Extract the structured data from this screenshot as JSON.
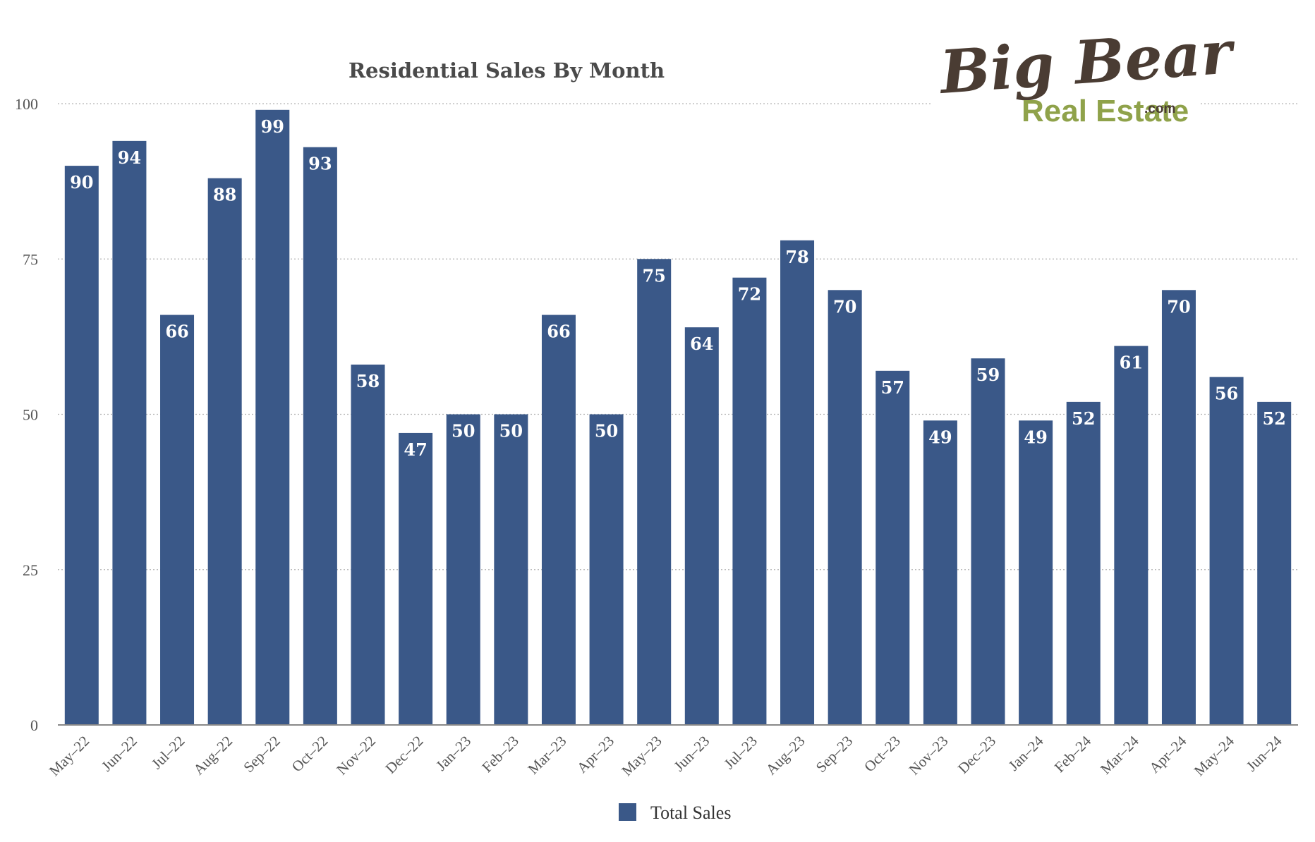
{
  "chart_data": {
    "type": "bar",
    "title": "Residential Sales By Month",
    "xlabel": "",
    "ylabel": "",
    "categories": [
      "May–22",
      "Jun–22",
      "Jul–22",
      "Aug–22",
      "Sep–22",
      "Oct–22",
      "Nov–22",
      "Dec–22",
      "Jan–23",
      "Feb–23",
      "Mar–23",
      "Apr–23",
      "May–23",
      "Jun–23",
      "Jul–23",
      "Aug–23",
      "Sep–23",
      "Oct–23",
      "Nov–23",
      "Dec–23",
      "Jan–24",
      "Feb–24",
      "Mar–24",
      "Apr–24",
      "May–24",
      "Jun–24"
    ],
    "series": [
      {
        "name": "Total Sales",
        "color": "#3a5888",
        "values": [
          90,
          94,
          66,
          88,
          99,
          93,
          58,
          47,
          50,
          50,
          66,
          50,
          75,
          64,
          72,
          78,
          70,
          57,
          49,
          59,
          49,
          52,
          61,
          70,
          56,
          52
        ]
      }
    ],
    "ylim": [
      0,
      100
    ],
    "yticks": [
      0,
      25,
      50,
      75,
      100
    ],
    "grid": true,
    "legend_position": "bottom-center",
    "data_labels": true
  },
  "logo": {
    "line1": "Big Bear",
    "line2": "Real Estate",
    "suffix": ".com"
  }
}
